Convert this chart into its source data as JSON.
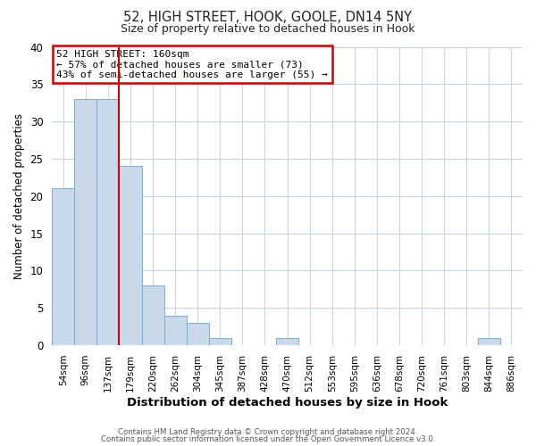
{
  "title1": "52, HIGH STREET, HOOK, GOOLE, DN14 5NY",
  "title2": "Size of property relative to detached houses in Hook",
  "xlabel": "Distribution of detached houses by size in Hook",
  "ylabel": "Number of detached properties",
  "bin_labels": [
    "54sqm",
    "96sqm",
    "137sqm",
    "179sqm",
    "220sqm",
    "262sqm",
    "304sqm",
    "345sqm",
    "387sqm",
    "428sqm",
    "470sqm",
    "512sqm",
    "553sqm",
    "595sqm",
    "636sqm",
    "678sqm",
    "720sqm",
    "761sqm",
    "803sqm",
    "844sqm",
    "886sqm"
  ],
  "bar_heights": [
    21,
    33,
    33,
    24,
    8,
    4,
    3,
    1,
    0,
    0,
    1,
    0,
    0,
    0,
    0,
    0,
    0,
    0,
    0,
    1,
    0
  ],
  "bar_color": "#c9d9ea",
  "bar_edge_color": "#7aaed0",
  "vline_x": 2.5,
  "vline_color": "#cc0000",
  "annotation_title": "52 HIGH STREET: 160sqm",
  "annotation_line1": "← 57% of detached houses are smaller (73)",
  "annotation_line2": "43% of semi-detached houses are larger (55) →",
  "annotation_box_facecolor": "#ffffff",
  "annotation_box_edgecolor": "#cc0000",
  "ylim": [
    0,
    40
  ],
  "yticks": [
    0,
    5,
    10,
    15,
    20,
    25,
    30,
    35,
    40
  ],
  "footer1": "Contains HM Land Registry data © Crown copyright and database right 2024.",
  "footer2": "Contains public sector information licensed under the Open Government Licence v3.0.",
  "bg_color": "#ffffff",
  "grid_color": "#c8d4e0"
}
